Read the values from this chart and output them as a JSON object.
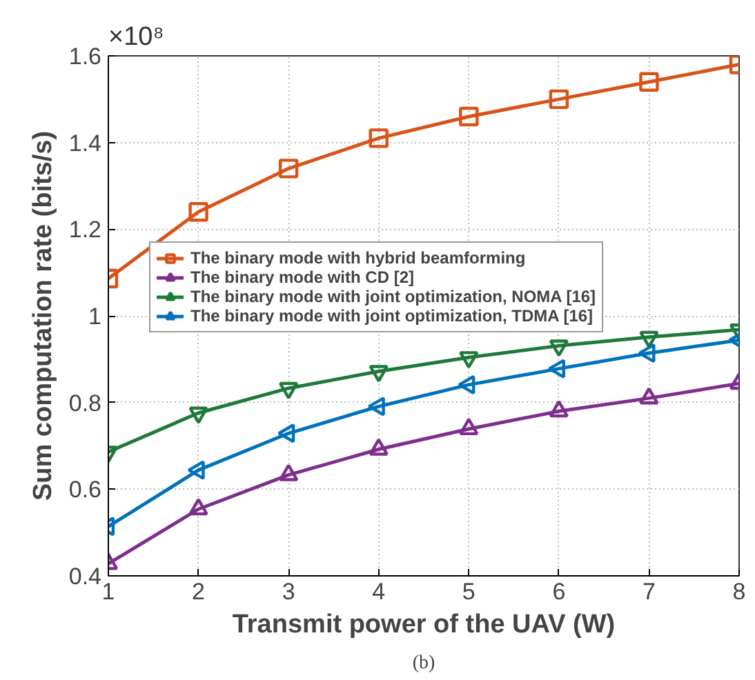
{
  "chart_data": {
    "type": "line",
    "xlabel": "Transmit power of the UAV (W)",
    "ylabel": "Sum computation rate (bits/s)",
    "x": [
      1,
      2,
      3,
      4,
      5,
      6,
      7,
      8
    ],
    "series": [
      {
        "name": "The binary mode with hybrid beamforming",
        "color": "#d95319",
        "marker": "square",
        "values": [
          1.086,
          1.24,
          1.34,
          1.41,
          1.46,
          1.5,
          1.54,
          1.58
        ]
      },
      {
        "name": "The binary mode with CD [2]",
        "color": "#7e2f8e",
        "marker": "triangle",
        "values": [
          0.428,
          0.554,
          0.633,
          0.692,
          0.739,
          0.78,
          0.81,
          0.844
        ]
      },
      {
        "name": "The binary mode with joint optimization, NOMA [16]",
        "color": "#1e7a3a",
        "marker": "triangle",
        "values": [
          0.686,
          0.776,
          0.833,
          0.872,
          0.904,
          0.931,
          0.951,
          0.968
        ]
      },
      {
        "name": "The binary mode with joint optimization, TDMA [16]",
        "color": "#0072bd",
        "marker": "triangle",
        "values": [
          0.514,
          0.644,
          0.729,
          0.791,
          0.841,
          0.878,
          0.914,
          0.944
        ]
      }
    ],
    "xlim": [
      1,
      8
    ],
    "xticks": [
      1,
      2,
      3,
      4,
      5,
      6,
      7,
      8
    ],
    "ylim": [
      0.4,
      1.6
    ],
    "yticks": [
      0.4,
      0.6,
      0.8,
      1,
      1.2,
      1.4,
      1.6
    ],
    "grid": true,
    "legend": "center",
    "line_style": "solid",
    "annotations": [
      "×10⁸",
      "(b)"
    ]
  }
}
